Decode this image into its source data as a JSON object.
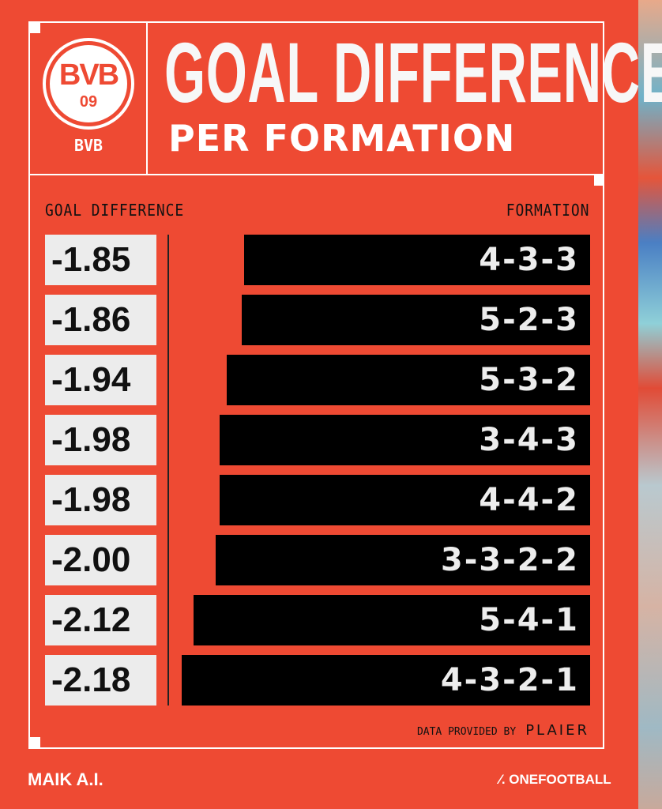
{
  "header": {
    "team_logo_text": "BVB",
    "team_logo_number": "09",
    "team_name": "BVB",
    "title_line1": "GOAL DIFFERENCE",
    "title_line2": "PER FORMATION"
  },
  "columns": {
    "left": "GOAL DIFFERENCE",
    "right": "FORMATION"
  },
  "chart_data": {
    "type": "bar",
    "orientation": "horizontal",
    "categories": [
      "4-3-3",
      "5-2-3",
      "5-3-2",
      "3-4-3",
      "4-4-2",
      "3-3-2-2",
      "5-4-1",
      "4-3-2-1"
    ],
    "values": [
      -1.85,
      -1.86,
      -1.94,
      -1.98,
      -1.98,
      -2.0,
      -2.12,
      -2.18
    ],
    "value_labels": [
      "-1.85",
      "-1.86",
      "-1.94",
      "-1.98",
      "-1.98",
      "-2.00",
      "-2.12",
      "-2.18"
    ],
    "xlabel": "GOAL DIFFERENCE",
    "ylabel": "FORMATION",
    "colors": {
      "bar": "#000000",
      "background": "#ee4a33",
      "value_box": "#ececec"
    }
  },
  "footer": {
    "credit": "DATA PROVIDED BY",
    "provider": "PLAIER",
    "brand_left": "MAIK A.I.",
    "brand_right": "ONEFOOTBALL"
  }
}
